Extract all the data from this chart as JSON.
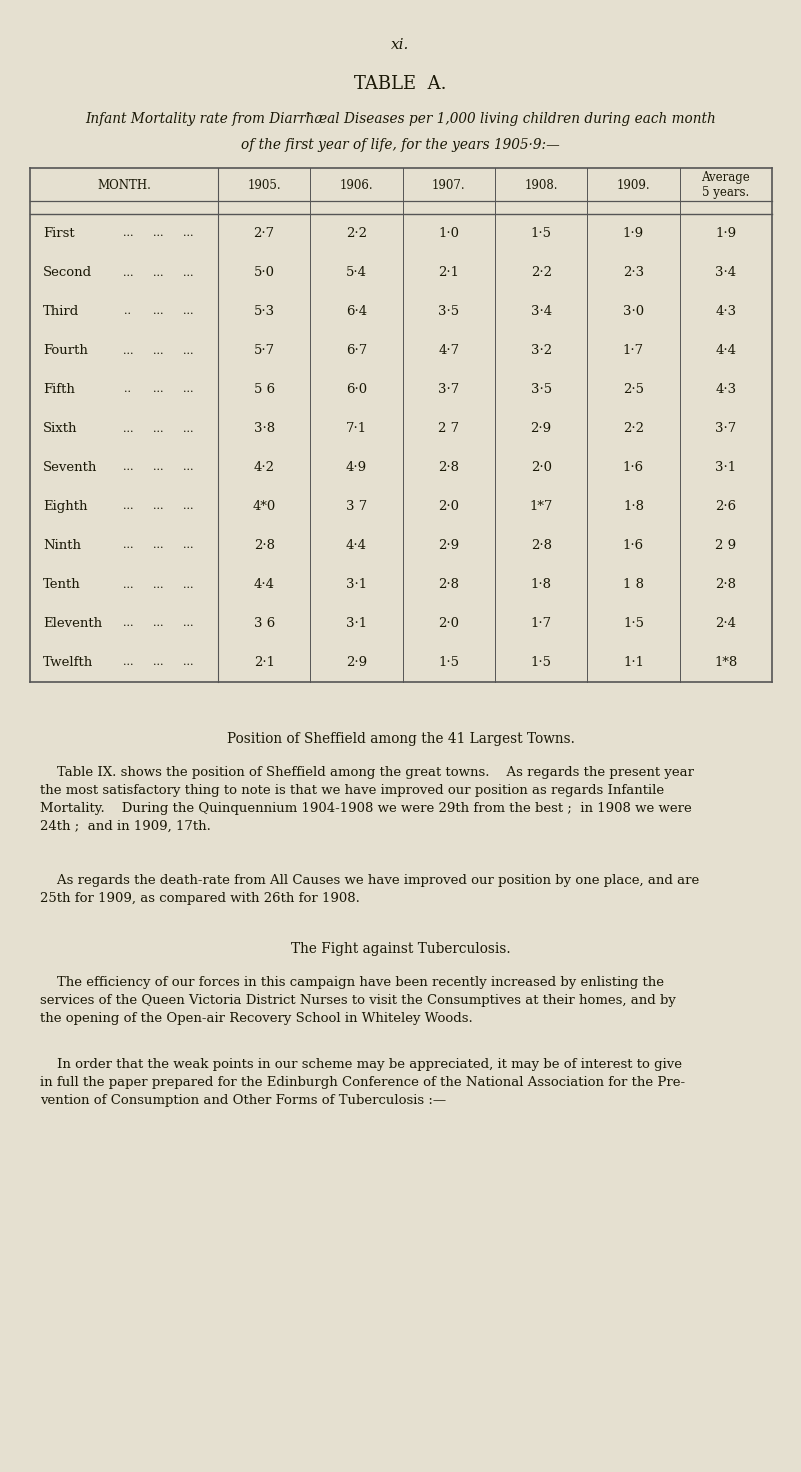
{
  "background_color": "#e5e0d0",
  "page_number": "xi.",
  "table_title": "TABLE  A.",
  "subtitle_line1": "Infant Mortality rate from Diarrħæal Diseases per 1,000 living children during each month",
  "subtitle_line2": "of the first year of life, for the years 1905·9:—",
  "month_names": [
    "First",
    "Second",
    "Third",
    "Fourth",
    "Fifth",
    "Sixth",
    "Seventh",
    "Eighth",
    "Ninth",
    "Tenth",
    "Eleventh",
    "Twelfth"
  ],
  "month_dots": [
    [
      "...",
      "...",
      "..."
    ],
    [
      "...",
      "...",
      "..."
    ],
    [
      "..",
      "...",
      "..."
    ],
    [
      "...",
      "...",
      "..."
    ],
    [
      "..",
      "...",
      "..."
    ],
    [
      "...",
      "...",
      "..."
    ],
    [
      "...",
      "...",
      "..."
    ],
    [
      "...",
      "...",
      "..."
    ],
    [
      "...",
      "...",
      "..."
    ],
    [
      "...",
      "...",
      "..."
    ],
    [
      "...",
      "...",
      "..."
    ],
    [
      "...",
      "...",
      "..."
    ]
  ],
  "year_headers": [
    "1905.",
    "1906.",
    "1907.",
    "1908.",
    "1909.",
    "Average\n5 years."
  ],
  "table_data": [
    [
      "2·7",
      "2·2",
      "1·0",
      "1·5",
      "1·9",
      "1·9"
    ],
    [
      "5·0",
      "5·4",
      "2·1",
      "2·2",
      "2·3",
      "3·4"
    ],
    [
      "5·3",
      "6·4",
      "3·5",
      "3·4",
      "3·0",
      "4·3"
    ],
    [
      "5·7",
      "6·7",
      "4·7",
      "3·2",
      "1·7",
      "4·4"
    ],
    [
      "5 6",
      "6·0",
      "3·7",
      "3·5",
      "2·5",
      "4·3"
    ],
    [
      "3·8",
      "7·1",
      "2 7",
      "2·9",
      "2·2",
      "3·7"
    ],
    [
      "4·2",
      "4·9",
      "2·8",
      "2·0",
      "1·6",
      "3·1"
    ],
    [
      "4*0",
      "3 7",
      "2·0",
      "1*7",
      "1·8",
      "2·6"
    ],
    [
      "2·8",
      "4·4",
      "2·9",
      "2·8",
      "1·6",
      "2 9"
    ],
    [
      "4·4",
      "3·1",
      "2·8",
      "1·8",
      "1 8",
      "2·8"
    ],
    [
      "3 6",
      "3·1",
      "2·0",
      "1·7",
      "1·5",
      "2·4"
    ],
    [
      "2·1",
      "2·9",
      "1·5",
      "1·5",
      "1·1",
      "1*8"
    ]
  ],
  "section1_title": "Position of Sheffield among the 41 Largest Towns.",
  "para1": "    Table IX. shows the position of Sheffield among the great towns.    As regards the present year\nthe most satisfactory thing to note is that we have improved our position as regards Infantile\nMortality.    During the Quinquennium 1904-1908 we were 29th from the best ;  in 1908 we were\n24th ;  and in 1909, 17th.",
  "para2": "    As regards the death-rate from All Causes we have improved our position by one place, and are\n25th for 1909, as compared with 26th for 1908.",
  "section2_title": "The Fight against Tuberculosis.",
  "para3": "    The efficiency of our forces in this campaign have been recently increased by enlisting the\nservices of the Queen Victoria District Nurses to visit the Consumptives at their homes, and by\nthe opening of the Open-air Recovery School in Whiteley Woods.",
  "para4": "    In order that the weak points in our scheme may be appreciated, it may be of interest to give\nin full the paper prepared for the Edinburgh Conference of the National Association for the Pre-\nvention of Consumption and Other Forms of Tuberculosis :—",
  "text_color": "#1a1806",
  "line_color": "#555555"
}
